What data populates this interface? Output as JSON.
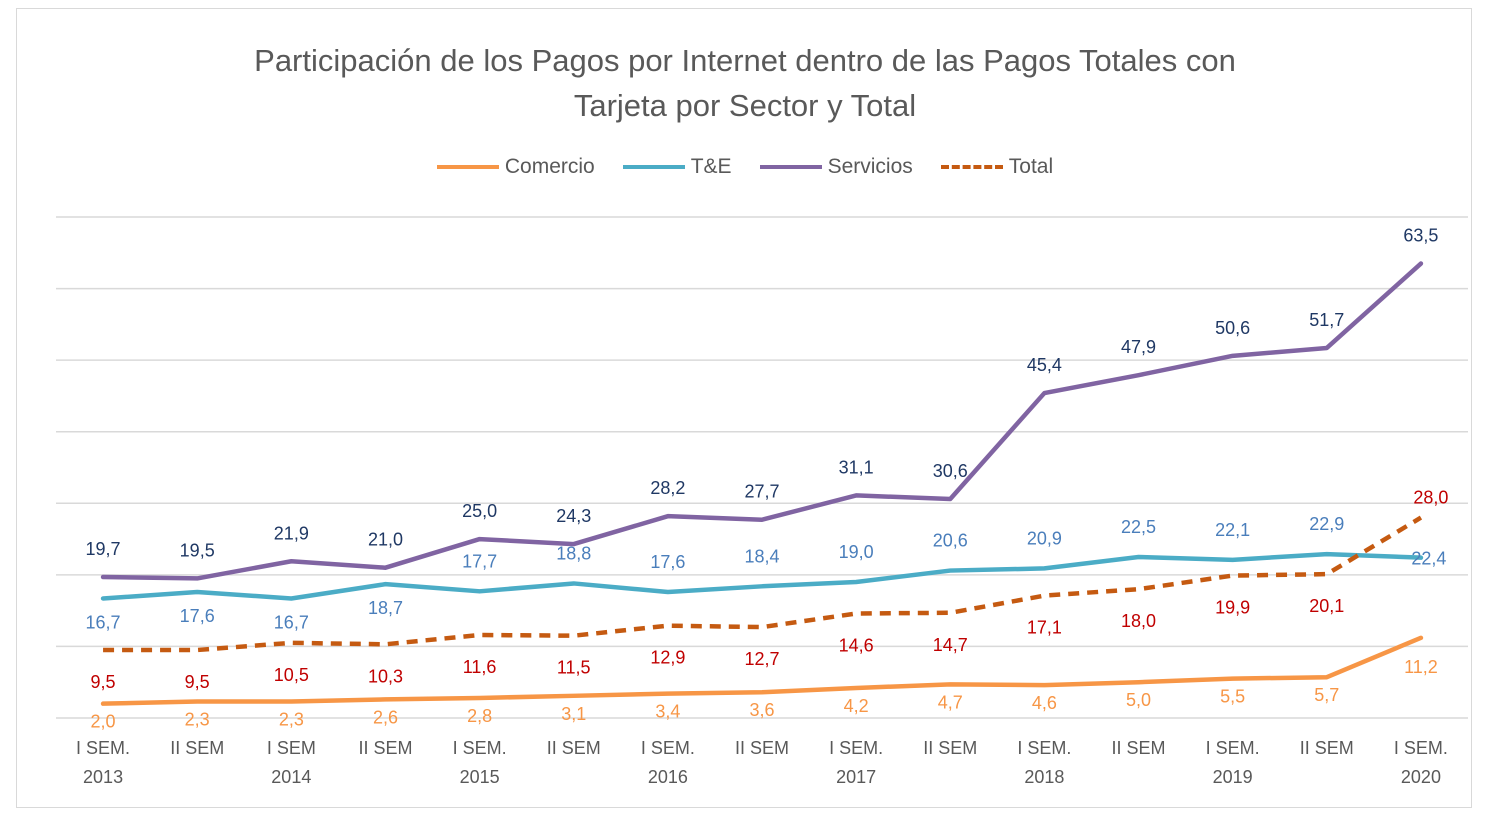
{
  "chart_data": {
    "type": "line",
    "title_lines": [
      "Participación de los Pagos por Internet dentro de las Pagos Totales con",
      "Tarjeta por Sector y Total"
    ],
    "xlabel": "",
    "ylabel": "",
    "categories": [
      [
        "I SEM.",
        "2013"
      ],
      [
        "II SEM",
        ""
      ],
      [
        "I SEM",
        "2014"
      ],
      [
        "II SEM",
        ""
      ],
      [
        "I SEM.",
        "2015"
      ],
      [
        "II SEM",
        ""
      ],
      [
        "I SEM.",
        "2016"
      ],
      [
        "II SEM",
        ""
      ],
      [
        "I SEM.",
        "2017"
      ],
      [
        "II SEM",
        ""
      ],
      [
        "I SEM.",
        "2018"
      ],
      [
        "II SEM",
        ""
      ],
      [
        "I SEM.",
        "2019"
      ],
      [
        "II SEM",
        ""
      ],
      [
        "I SEM.",
        "2020"
      ]
    ],
    "ylim": [
      0,
      70
    ],
    "grid": true,
    "legend_position": "top",
    "series": [
      {
        "name": "Comercio",
        "color": "#f79646",
        "label_color": "#f79646",
        "dashed": false,
        "values": [
          2.0,
          2.3,
          2.3,
          2.6,
          2.8,
          3.1,
          3.4,
          3.6,
          4.2,
          4.7,
          4.6,
          5.0,
          5.5,
          5.7,
          11.2
        ],
        "labels": [
          "2,0",
          "2,3",
          "2,3",
          "2,6",
          "2,8",
          "3,1",
          "3,4",
          "3,6",
          "4,2",
          "4,7",
          "4,6",
          "5,0",
          "5,5",
          "5,7",
          "11,2"
        ]
      },
      {
        "name": "T&E",
        "color": "#4bacc6",
        "label_color": "#4a7ebb",
        "dashed": false,
        "values": [
          16.7,
          17.6,
          16.7,
          18.7,
          17.7,
          18.8,
          17.6,
          18.4,
          19.0,
          20.6,
          20.9,
          22.5,
          22.1,
          22.9,
          22.4
        ],
        "labels": [
          "16,7",
          "17,6",
          "16,7",
          "18,7",
          "17,7",
          "18,8",
          "17,6",
          "18,4",
          "19,0",
          "20,6",
          "20,9",
          "22,5",
          "22,1",
          "22,9",
          "22,4"
        ]
      },
      {
        "name": "Servicios",
        "color": "#8064a2",
        "label_color": "#1f3864",
        "dashed": false,
        "values": [
          19.7,
          19.5,
          21.9,
          21.0,
          25.0,
          24.3,
          28.2,
          27.7,
          31.1,
          30.6,
          45.4,
          47.9,
          50.6,
          51.7,
          63.5
        ],
        "labels": [
          "19,7",
          "19,5",
          "21,9",
          "21,0",
          "25,0",
          "24,3",
          "28,2",
          "27,7",
          "31,1",
          "30,6",
          "45,4",
          "47,9",
          "50,6",
          "51,7",
          "63,5"
        ]
      },
      {
        "name": "Total",
        "color": "#c55a11",
        "label_color": "#c00000",
        "dashed": true,
        "values": [
          9.5,
          9.5,
          10.5,
          10.3,
          11.6,
          11.5,
          12.9,
          12.7,
          14.6,
          14.7,
          17.1,
          18.0,
          19.9,
          20.1,
          28.0
        ],
        "labels": [
          "9,5",
          "9,5",
          "10,5",
          "10,3",
          "11,6",
          "11,5",
          "12,9",
          "12,7",
          "14,6",
          "14,7",
          "17,1",
          "18,0",
          "19,9",
          "20,1",
          "28,0"
        ]
      }
    ]
  },
  "colors": {
    "grid": "#d9d9d9",
    "text": "#595959",
    "frame": "#d9d9d9"
  }
}
